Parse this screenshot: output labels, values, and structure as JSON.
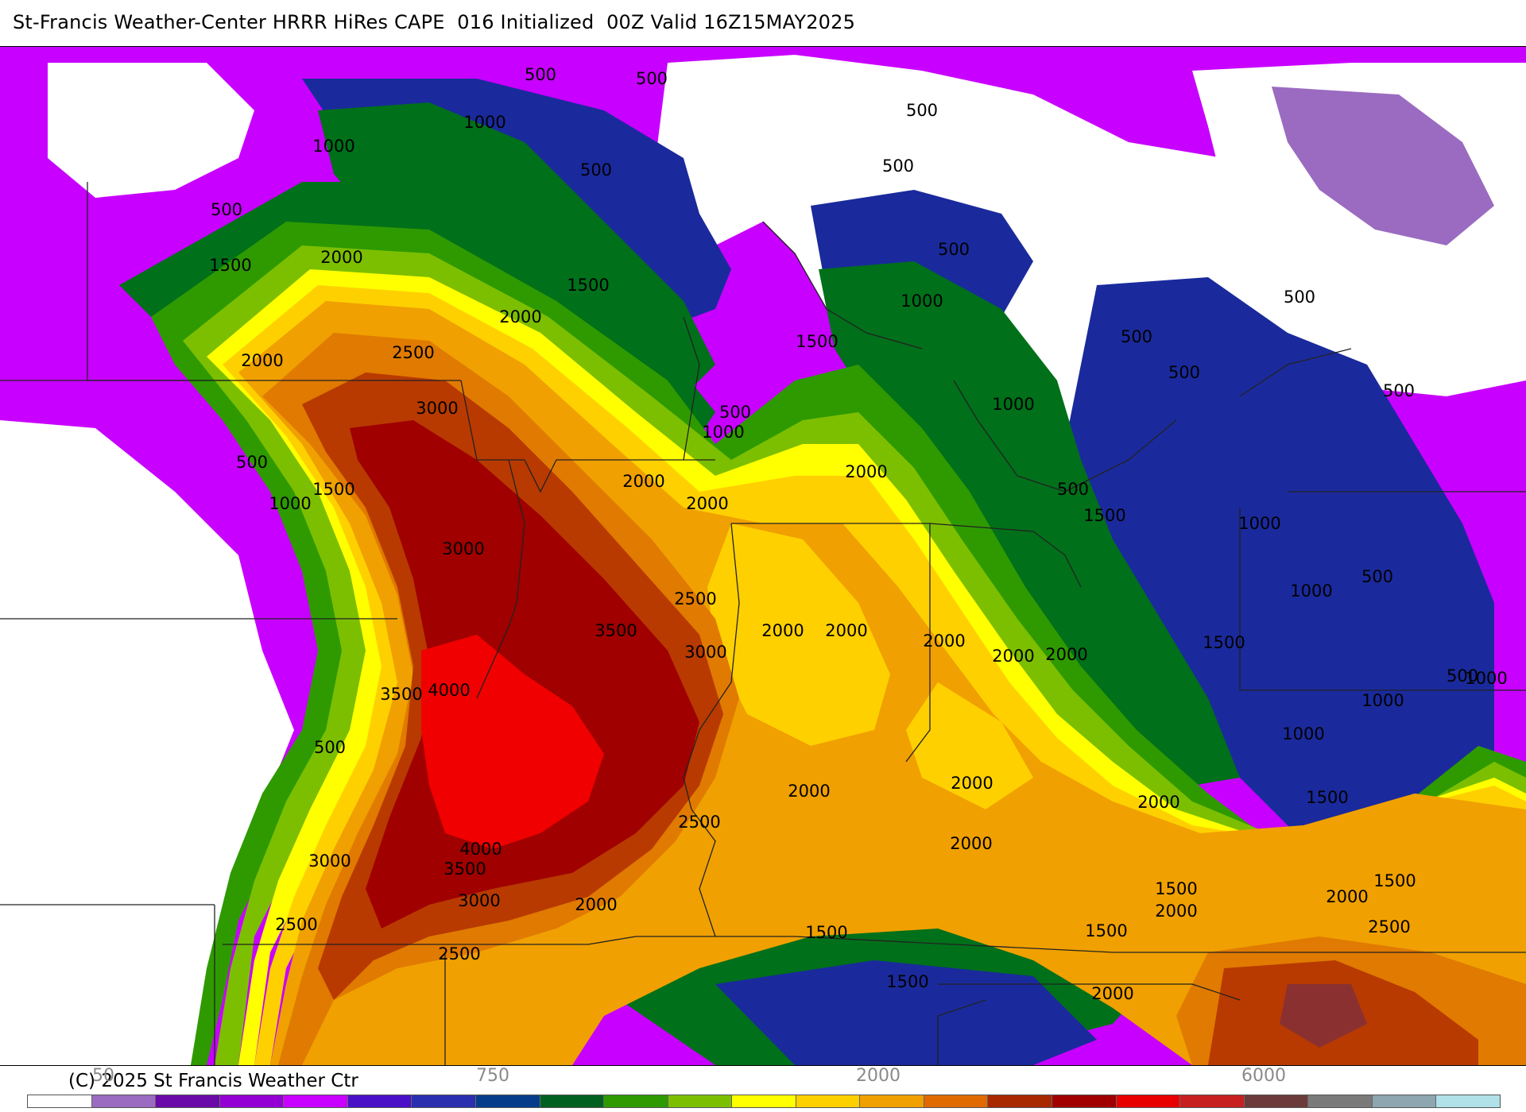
{
  "header": {
    "title": "St-Francis Weather-Center HRRR HiRes CAPE  016 Initialized  00Z Valid 16Z15MAY2025"
  },
  "footer": {
    "copyright": "(C) 2025 St Francis Weather Ctr"
  },
  "colorbar": {
    "tick_labels": [
      "50",
      "750",
      "2000",
      "6000"
    ],
    "colors": [
      "#ffffff",
      "#9a6bc0",
      "#6a0aa8",
      "#9400d3",
      "#c800ff",
      "#4a10c8",
      "#2a2fb0",
      "#063d8a",
      "#006020",
      "#2e9a00",
      "#7cbf00",
      "#ffff00",
      "#ffd000",
      "#f0a000",
      "#e06a00",
      "#a82800",
      "#a00000",
      "#e80000",
      "#c82020",
      "#6b3a3a",
      "#7a7a7a",
      "#8da6b0",
      "#b0e0e8"
    ]
  },
  "map": {
    "palette": {
      "white": "#ffffff",
      "lavender": "#9a6bc0",
      "magenta": "#c800ff",
      "purple": "#9400d3",
      "indigo": "#4a10c8",
      "navy": "#1a2a9c",
      "darkgreen": "#00701a",
      "green": "#2e9a00",
      "lightgreen": "#7cbf00",
      "yellow": "#ffff00",
      "gold": "#ffd000",
      "orange": "#f0a000",
      "darkorange": "#e07a00",
      "rust": "#b83a00",
      "maroon": "#a00000",
      "red": "#f00000",
      "brown": "#8a3030"
    },
    "contour_labels": [
      "500",
      "1000",
      "1500",
      "2000",
      "2500",
      "3000",
      "3500",
      "4000"
    ]
  }
}
